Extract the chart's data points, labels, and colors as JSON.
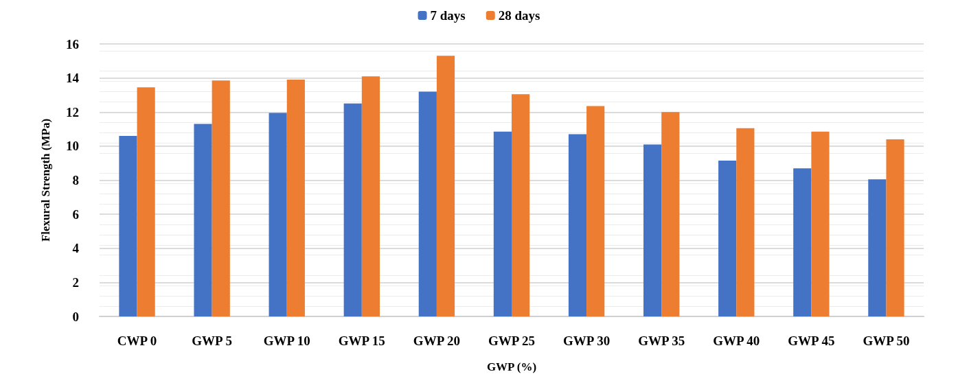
{
  "chart_data": {
    "type": "bar",
    "xlabel": "GWP (%)",
    "ylabel": "Flexural Strength (MPa)",
    "categories": [
      "CWP 0",
      "GWP 5",
      "GWP 10",
      "GWP 15",
      "GWP 20",
      "GWP 25",
      "GWP 30",
      "GWP 35",
      "GWP 40",
      "GWP 45",
      "GWP 50"
    ],
    "series": [
      {
        "name": "7 days",
        "color": "#4472c4",
        "values": [
          10.6,
          11.3,
          11.95,
          12.5,
          13.2,
          10.85,
          10.7,
          10.1,
          9.15,
          8.7,
          8.05
        ]
      },
      {
        "name": "28 days",
        "color": "#ed7d31",
        "values": [
          13.45,
          13.85,
          13.9,
          14.1,
          15.3,
          13.05,
          12.35,
          12.0,
          11.05,
          10.85,
          10.4
        ]
      }
    ],
    "ylim": [
      0,
      16
    ],
    "yticks": [
      0,
      2,
      4,
      6,
      8,
      10,
      12,
      14,
      16
    ],
    "grid": "y",
    "legend": "top"
  }
}
